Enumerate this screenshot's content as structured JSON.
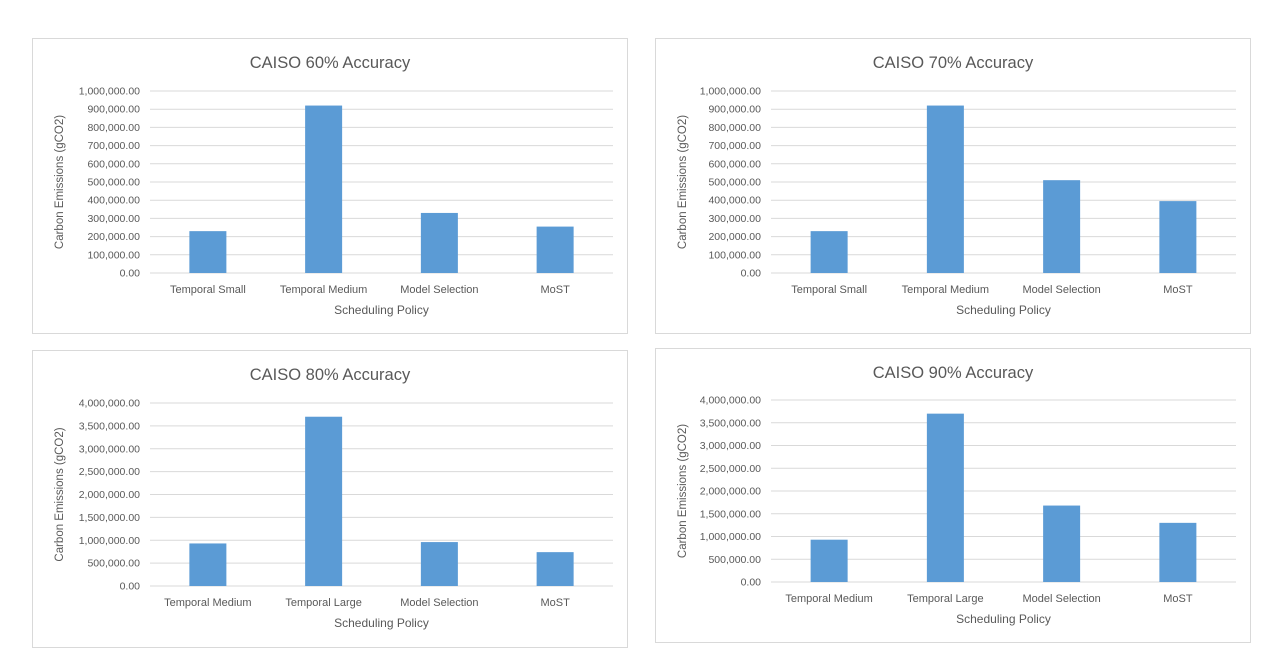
{
  "chart_data": [
    {
      "type": "bar",
      "title": "CAISO 60% Accuracy",
      "xlabel": "Scheduling Policy",
      "ylabel": "Carbon Emissions (gCO2)",
      "categories": [
        "Temporal Small",
        "Temporal Medium",
        "Model Selection",
        "MoST"
      ],
      "values": [
        230000,
        920000,
        330000,
        255000
      ],
      "ylim": [
        0,
        1000000
      ],
      "yticks": [
        "0.00",
        "100,000.00",
        "200,000.00",
        "300,000.00",
        "400,000.00",
        "500,000.00",
        "600,000.00",
        "700,000.00",
        "800,000.00",
        "900,000.00",
        "1,000,000.00"
      ],
      "grid": true,
      "bar_color": "#5b9bd5"
    },
    {
      "type": "bar",
      "title": "CAISO 70% Accuracy",
      "xlabel": "Scheduling Policy",
      "ylabel": "Carbon Emissions (gCO2)",
      "categories": [
        "Temporal Small",
        "Temporal Medium",
        "Model Selection",
        "MoST"
      ],
      "values": [
        230000,
        920000,
        510000,
        395000
      ],
      "ylim": [
        0,
        1000000
      ],
      "yticks": [
        "0.00",
        "100,000.00",
        "200,000.00",
        "300,000.00",
        "400,000.00",
        "500,000.00",
        "600,000.00",
        "700,000.00",
        "800,000.00",
        "900,000.00",
        "1,000,000.00"
      ],
      "grid": true,
      "bar_color": "#5b9bd5"
    },
    {
      "type": "bar",
      "title": "CAISO 80% Accuracy",
      "xlabel": "Scheduling Policy",
      "ylabel": "Carbon Emissions (gCO2)",
      "categories": [
        "Temporal Medium",
        "Temporal Large",
        "Model Selection",
        "MoST"
      ],
      "values": [
        930000,
        3700000,
        960000,
        740000
      ],
      "ylim": [
        0,
        4000000
      ],
      "yticks": [
        "0.00",
        "500,000.00",
        "1,000,000.00",
        "1,500,000.00",
        "2,000,000.00",
        "2,500,000.00",
        "3,000,000.00",
        "3,500,000.00",
        "4,000,000.00"
      ],
      "grid": true,
      "bar_color": "#5b9bd5"
    },
    {
      "type": "bar",
      "title": "CAISO 90% Accuracy",
      "xlabel": "Scheduling Policy",
      "ylabel": "Carbon Emissions (gCO2)",
      "categories": [
        "Temporal Medium",
        "Temporal Large",
        "Model Selection",
        "MoST"
      ],
      "values": [
        930000,
        3700000,
        1680000,
        1300000
      ],
      "ylim": [
        0,
        4000000
      ],
      "yticks": [
        "0.00",
        "500,000.00",
        "1,000,000.00",
        "1,500,000.00",
        "2,000,000.00",
        "2,500,000.00",
        "3,000,000.00",
        "3,500,000.00",
        "4,000,000.00"
      ],
      "grid": true,
      "bar_color": "#5b9bd5"
    }
  ]
}
